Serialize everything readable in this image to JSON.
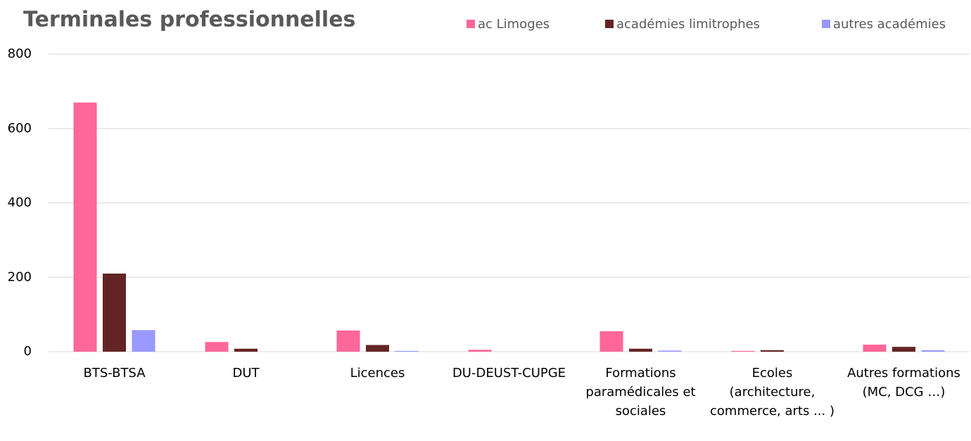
{
  "chart_data": {
    "type": "bar",
    "title": "Terminales professionnelles",
    "categories": [
      "BTS-BTSA",
      "DUT",
      "Licences",
      "DU-DEUST-CUPGE",
      "Formations paramédicales et sociales",
      "Ecoles (architecture, commerce, arts ... )",
      "Autres formations (MC, DCG …)"
    ],
    "series": [
      {
        "name": "ac Limoges",
        "color": "#ff6699",
        "values": [
          670,
          26,
          57,
          5,
          55,
          2,
          19
        ]
      },
      {
        "name": "académies limitrophes",
        "color": "#632523",
        "values": [
          210,
          8,
          18,
          0,
          8,
          4,
          13
        ]
      },
      {
        "name": "autres académies",
        "color": "#9999ff",
        "values": [
          58,
          0,
          2,
          0,
          3,
          0,
          4
        ]
      }
    ],
    "ylim": [
      0,
      800
    ],
    "yticks": [
      0,
      200,
      400,
      600,
      800
    ],
    "grid": true,
    "legend": "top-right"
  }
}
